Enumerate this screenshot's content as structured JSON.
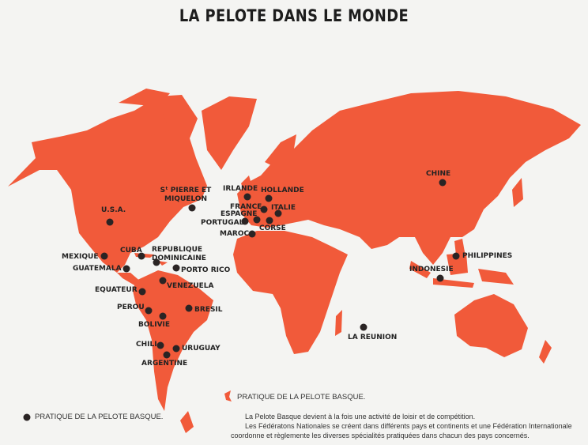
{
  "title": "LA PELOTE DANS LE MONDE",
  "colors": {
    "land": "#f15a3a",
    "dot": "#2a2424",
    "background": "#f4f4f2"
  },
  "locations": [
    {
      "label": "U.S.A."
    },
    {
      "label": "Sᵗ PIERRE ET MIQUELON"
    },
    {
      "label": "IRLANDE"
    },
    {
      "label": "HOLLANDE"
    },
    {
      "label": "FRANCE"
    },
    {
      "label": "ITALIE"
    },
    {
      "label": "ESPAGNE"
    },
    {
      "label": "PORTUGAL"
    },
    {
      "label": "CORSE"
    },
    {
      "label": "MAROC"
    },
    {
      "label": "MEXIQUE"
    },
    {
      "label": "CUBA"
    },
    {
      "label": "REPUBLIQUE DOMINICAINE"
    },
    {
      "label": "PORTO RICO"
    },
    {
      "label": "GUATEMALA"
    },
    {
      "label": "VENEZUELA"
    },
    {
      "label": "EQUATEUR"
    },
    {
      "label": "PEROU"
    },
    {
      "label": "BOLIVIE"
    },
    {
      "label": "BRESIL"
    },
    {
      "label": "CHILI"
    },
    {
      "label": "URUGUAY"
    },
    {
      "label": "ARGENTINE"
    },
    {
      "label": "LA REUNION"
    },
    {
      "label": "CHINE"
    },
    {
      "label": "PHILIPPINES"
    },
    {
      "label": "INDONESIE"
    }
  ],
  "legend": {
    "land_label": "PRATIQUE DE LA PELOTE BASQUE.",
    "dot_label": "PRATIQUE DE LA PELOTE BASQUE."
  },
  "description": [
    "La Pelote Basque devient à la fois une activité de loisir et de compétition.",
    "Les Fédératons Nationales se créent dans différents pays et continents et une Fédération Internationale coordonne et règlemente les diverses spécialités pratiquées dans chacun des pays concernés."
  ]
}
